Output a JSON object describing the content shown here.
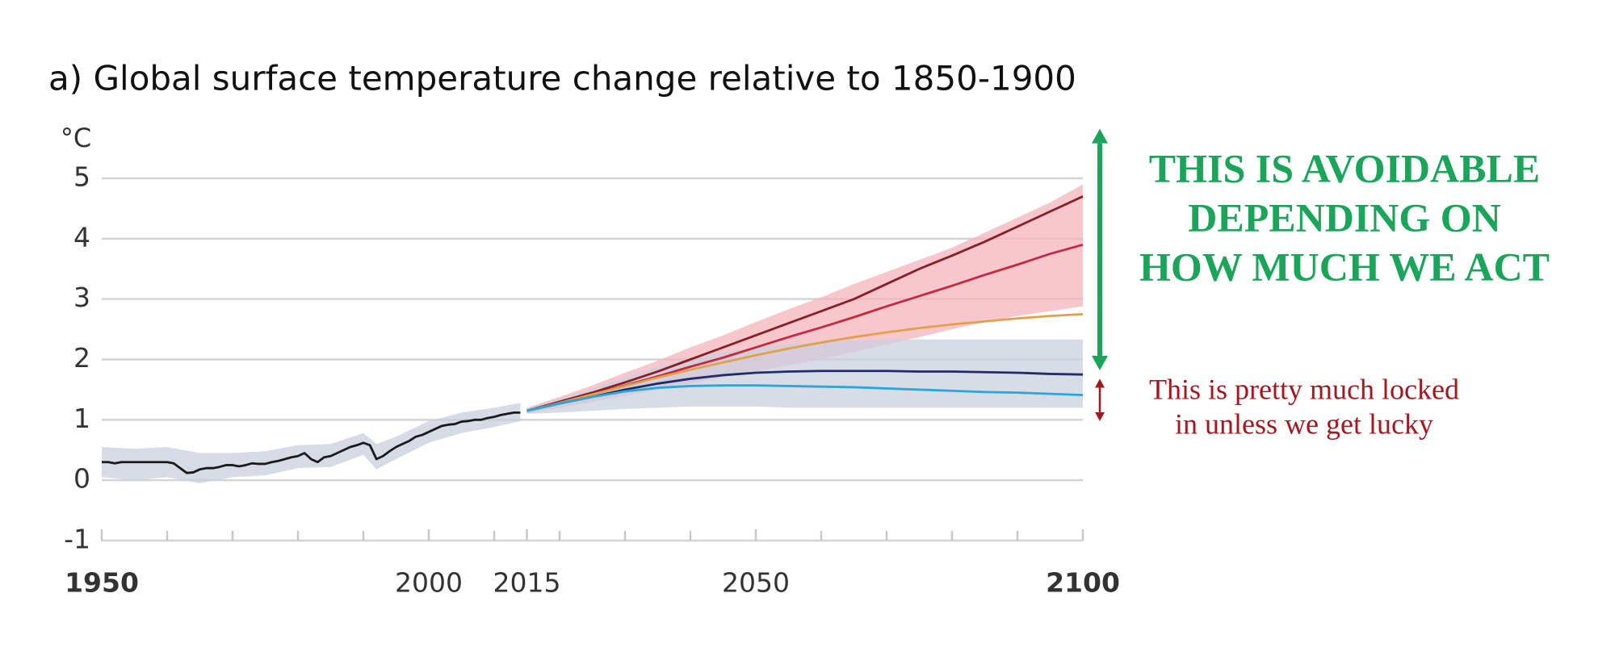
{
  "chart_data": {
    "type": "line",
    "title": "a) Global surface temperature change relative to 1850-1900",
    "y_unit": "°C",
    "xlim": [
      1950,
      2100
    ],
    "xticks": [
      1950,
      2000,
      2015,
      2050,
      2100
    ],
    "xminor_ticks": [
      1960,
      1970,
      1980,
      1990,
      2010,
      2020,
      2030,
      2040,
      2060,
      2070,
      2080,
      2090
    ],
    "ylim": [
      -1,
      5
    ],
    "yticks": [
      -1,
      0,
      1,
      2,
      3,
      4,
      5
    ],
    "grid": true,
    "bands": [
      {
        "color": "#c8cfdc",
        "x": [
          1950,
          1955,
          1960,
          1965,
          1970,
          1975,
          1980,
          1985,
          1990,
          1992,
          1995,
          2000,
          2005,
          2010,
          2014
        ],
        "lower": [
          0.05,
          0.0,
          0.05,
          -0.05,
          0.05,
          0.08,
          0.2,
          0.22,
          0.42,
          0.18,
          0.35,
          0.62,
          0.78,
          0.88,
          0.98
        ],
        "upper": [
          0.55,
          0.52,
          0.55,
          0.45,
          0.45,
          0.48,
          0.58,
          0.6,
          0.78,
          0.6,
          0.72,
          0.98,
          1.12,
          1.2,
          1.28
        ]
      },
      {
        "color": "#f4b4be",
        "x": [
          2015,
          2020,
          2025,
          2030,
          2035,
          2040,
          2045,
          2050,
          2055,
          2060,
          2065,
          2070,
          2075,
          2080,
          2085,
          2090,
          2095,
          2100
        ],
        "lower": [
          1.1,
          1.2,
          1.3,
          1.4,
          1.5,
          1.6,
          1.7,
          1.8,
          1.9,
          2.0,
          2.12,
          2.25,
          2.37,
          2.5,
          2.62,
          2.72,
          2.8,
          2.88
        ],
        "upper": [
          1.2,
          1.38,
          1.57,
          1.78,
          1.98,
          2.2,
          2.4,
          2.62,
          2.83,
          3.03,
          3.25,
          3.45,
          3.65,
          3.85,
          4.1,
          4.35,
          4.6,
          4.9
        ]
      },
      {
        "color": "#c9d0de",
        "x": [
          2015,
          2020,
          2025,
          2030,
          2035,
          2040,
          2045,
          2050,
          2055,
          2060,
          2065,
          2070,
          2075,
          2080,
          2085,
          2090,
          2095,
          2100
        ],
        "lower": [
          1.1,
          1.12,
          1.15,
          1.18,
          1.2,
          1.22,
          1.22,
          1.22,
          1.2,
          1.2,
          1.2,
          1.2,
          1.2,
          1.2,
          1.2,
          1.2,
          1.2,
          1.2
        ],
        "upper": [
          1.2,
          1.35,
          1.52,
          1.7,
          1.88,
          2.02,
          2.12,
          2.2,
          2.25,
          2.3,
          2.32,
          2.33,
          2.33,
          2.33,
          2.33,
          2.33,
          2.33,
          2.33
        ]
      }
    ],
    "series": [
      {
        "color": "#1a1a1a",
        "x": [
          1950,
          1951,
          1952,
          1953,
          1954,
          1955,
          1956,
          1957,
          1958,
          1959,
          1960,
          1961,
          1962,
          1963,
          1964,
          1965,
          1966,
          1967,
          1968,
          1969,
          1970,
          1971,
          1972,
          1973,
          1974,
          1975,
          1976,
          1977,
          1978,
          1979,
          1980,
          1981,
          1982,
          1983,
          1984,
          1985,
          1986,
          1987,
          1988,
          1989,
          1990,
          1991,
          1992,
          1993,
          1994,
          1995,
          1996,
          1997,
          1998,
          1999,
          2000,
          2001,
          2002,
          2003,
          2004,
          2005,
          2006,
          2007,
          2008,
          2009,
          2010,
          2011,
          2012,
          2013,
          2014
        ],
        "values": [
          0.3,
          0.3,
          0.28,
          0.3,
          0.3,
          0.3,
          0.3,
          0.3,
          0.3,
          0.3,
          0.3,
          0.28,
          0.2,
          0.12,
          0.13,
          0.18,
          0.2,
          0.2,
          0.22,
          0.25,
          0.25,
          0.23,
          0.25,
          0.28,
          0.27,
          0.27,
          0.3,
          0.32,
          0.35,
          0.38,
          0.4,
          0.45,
          0.35,
          0.3,
          0.38,
          0.4,
          0.45,
          0.5,
          0.55,
          0.58,
          0.62,
          0.58,
          0.35,
          0.4,
          0.48,
          0.55,
          0.6,
          0.65,
          0.72,
          0.75,
          0.8,
          0.85,
          0.9,
          0.92,
          0.93,
          0.97,
          0.98,
          1.0,
          1.0,
          1.03,
          1.05,
          1.08,
          1.1,
          1.12,
          1.12
        ]
      },
      {
        "color": "#8b1d24",
        "x": [
          2015,
          2020,
          2025,
          2030,
          2035,
          2040,
          2045,
          2050,
          2055,
          2060,
          2065,
          2070,
          2075,
          2080,
          2085,
          2090,
          2095,
          2100
        ],
        "values": [
          1.15,
          1.3,
          1.45,
          1.62,
          1.8,
          2.0,
          2.2,
          2.4,
          2.6,
          2.8,
          3.0,
          3.25,
          3.5,
          3.72,
          3.95,
          4.2,
          4.45,
          4.7
        ]
      },
      {
        "color": "#c7283d",
        "x": [
          2015,
          2020,
          2025,
          2030,
          2035,
          2040,
          2045,
          2050,
          2055,
          2060,
          2065,
          2070,
          2075,
          2080,
          2085,
          2090,
          2095,
          2100
        ],
        "values": [
          1.15,
          1.28,
          1.42,
          1.57,
          1.72,
          1.88,
          2.03,
          2.2,
          2.37,
          2.53,
          2.7,
          2.88,
          3.05,
          3.22,
          3.4,
          3.57,
          3.75,
          3.9
        ]
      },
      {
        "color": "#e3a04a",
        "x": [
          2015,
          2020,
          2025,
          2030,
          2035,
          2040,
          2045,
          2050,
          2055,
          2060,
          2065,
          2070,
          2075,
          2080,
          2085,
          2090,
          2095,
          2100
        ],
        "values": [
          1.15,
          1.28,
          1.42,
          1.56,
          1.7,
          1.83,
          1.95,
          2.07,
          2.18,
          2.28,
          2.37,
          2.45,
          2.52,
          2.58,
          2.63,
          2.68,
          2.72,
          2.75
        ]
      },
      {
        "color": "#1f2d6b",
        "x": [
          2015,
          2020,
          2025,
          2030,
          2035,
          2040,
          2045,
          2050,
          2055,
          2060,
          2065,
          2070,
          2075,
          2080,
          2085,
          2090,
          2095,
          2100
        ],
        "values": [
          1.15,
          1.27,
          1.38,
          1.5,
          1.6,
          1.68,
          1.74,
          1.78,
          1.8,
          1.81,
          1.81,
          1.81,
          1.8,
          1.8,
          1.79,
          1.78,
          1.76,
          1.75
        ]
      },
      {
        "color": "#2aa7d9",
        "x": [
          2015,
          2020,
          2025,
          2030,
          2035,
          2040,
          2045,
          2050,
          2055,
          2060,
          2065,
          2070,
          2075,
          2080,
          2085,
          2090,
          2095,
          2100
        ],
        "values": [
          1.15,
          1.27,
          1.38,
          1.47,
          1.53,
          1.56,
          1.57,
          1.57,
          1.56,
          1.55,
          1.54,
          1.52,
          1.5,
          1.48,
          1.46,
          1.45,
          1.43,
          1.41
        ]
      }
    ],
    "annotations": [
      {
        "lines": [
          "THIS IS AVOIDABLE",
          "DEPENDING ON",
          "HOW MUCH WE ACT"
        ],
        "color": "#1aa55a",
        "range": [
          1.82,
          5.82
        ]
      },
      {
        "lines": [
          "This is pretty much locked",
          "in unless we get lucky"
        ],
        "color": "#a3171f",
        "range": [
          0.98,
          1.68
        ]
      }
    ]
  }
}
